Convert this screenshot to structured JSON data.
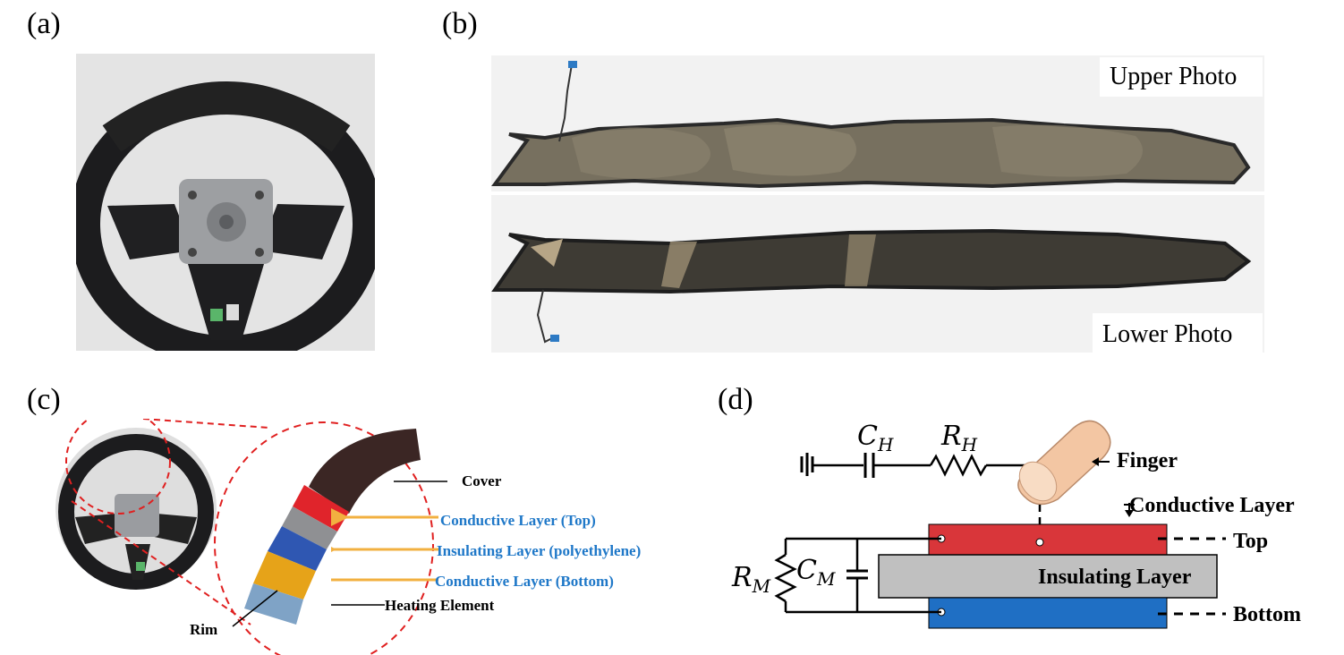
{
  "panels": {
    "a": {
      "label": "(a)"
    },
    "b": {
      "label": "(b)",
      "upper_caption": "Upper Photo",
      "lower_caption": "Lower Photo"
    },
    "c": {
      "label": "(c)",
      "labels": {
        "cover": "Cover",
        "conductive_top": "Conductive Layer (Top)",
        "insulating": "Insulating Layer (polyethylene)",
        "conductive_bottom": "Conductive Layer (Bottom)",
        "heating": "Heating Element",
        "rim": "Rim"
      },
      "colors": {
        "cover": "#3b2624",
        "conductive_top": "#e0242b",
        "insulating_gray": "#8f9093",
        "insulating_blue": "#2f57b2",
        "conductive_bottom": "#e6a319",
        "rim": "#7fa3c6",
        "arrow": "#f2b040",
        "dash": "#e02020",
        "label_blue": "#1f78c8"
      }
    },
    "d": {
      "label": "(d)",
      "ch": {
        "sym": "C",
        "sub": "H"
      },
      "rh": {
        "sym": "R",
        "sub": "H"
      },
      "rm": {
        "sym": "R",
        "sub": "M"
      },
      "cm": {
        "sym": "C",
        "sub": "M"
      },
      "finger": "Finger",
      "conductive_layer": "Conductive Layer",
      "insulating_layer": "Insulating Layer",
      "top": "Top",
      "bottom": "Bottom",
      "colors": {
        "top_plate": "#d9363a",
        "bottom_plate": "#1f6fc4",
        "insulator": "#c0c0c0",
        "finger": "#f3c6a3"
      }
    }
  }
}
